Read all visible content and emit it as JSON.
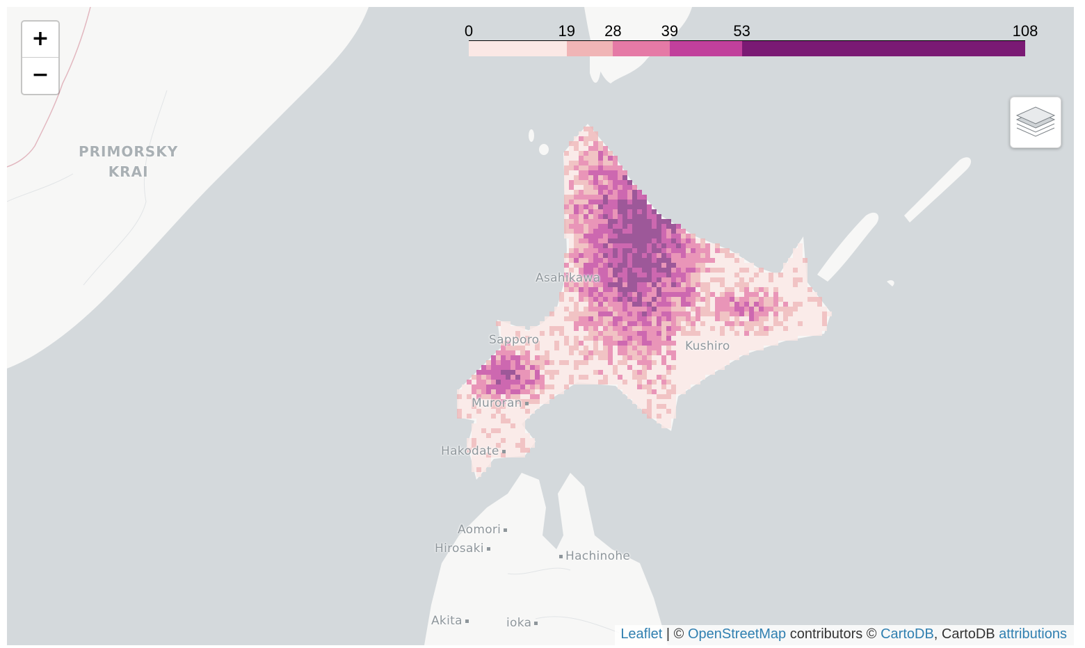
{
  "map": {
    "places": [
      {
        "id": "asahikawa",
        "name": "Asahikawa"
      },
      {
        "id": "sapporo",
        "name": "Sapporo"
      },
      {
        "id": "kushiro",
        "name": "Kushiro"
      },
      {
        "id": "muroran",
        "name": "Muroran"
      },
      {
        "id": "hakodate",
        "name": "Hakodate"
      },
      {
        "id": "aomori",
        "name": "Aomori"
      },
      {
        "id": "hirosaki",
        "name": "Hirosaki"
      },
      {
        "id": "hachinohe",
        "name": "Hachinohe"
      },
      {
        "id": "akita",
        "name": "Akita"
      },
      {
        "id": "morioka",
        "name": "ioka"
      }
    ],
    "region_label": {
      "line1": "PRIMORSKY",
      "line2": "KRAI"
    },
    "colors": {
      "sea": "#d4d9dc",
      "land": "#f7f7f6",
      "border": "#e2b7bf"
    }
  },
  "zoom": {
    "in_label": "+",
    "out_label": "−"
  },
  "layers_control": {
    "icon": "layers-icon"
  },
  "legend": {
    "ticks": [
      "0",
      "19",
      "28",
      "39",
      "53",
      "108"
    ],
    "bins": [
      {
        "from": 0,
        "to": 19,
        "color": "#fbe8e5"
      },
      {
        "from": 19,
        "to": 28,
        "color": "#f0b5b6"
      },
      {
        "from": 28,
        "to": 39,
        "color": "#e57aa6"
      },
      {
        "from": 39,
        "to": 53,
        "color": "#c1409c"
      },
      {
        "from": 53,
        "to": 108,
        "color": "#7a1a74"
      }
    ],
    "range": [
      0,
      108
    ]
  },
  "attribution": {
    "leaflet": "Leaflet",
    "sep": " | © ",
    "osm": "OpenStreetMap",
    "contrib": " contributors © ",
    "cartodb": "CartoDB",
    "mid": ", CartoDB ",
    "attributions": "attributions"
  }
}
